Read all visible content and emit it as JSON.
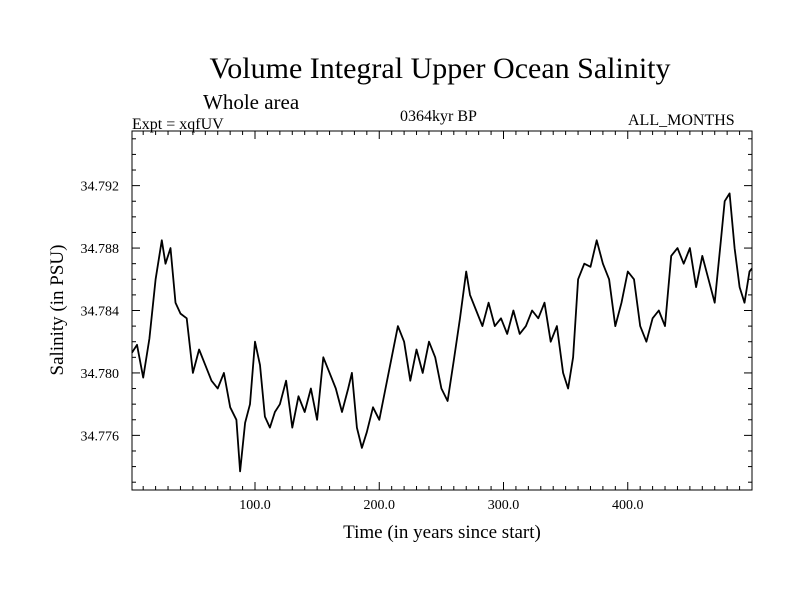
{
  "header": {
    "title": "Volume Integral Upper Ocean Salinity",
    "subtitle": "Whole area",
    "experiment": "Expt = xqfUV",
    "period": "0364kyr BP",
    "months": "ALL_MONTHS"
  },
  "chart_data": {
    "type": "line",
    "title": "Volume Integral Upper Ocean Salinity",
    "xlabel": "Time (in years since start)",
    "ylabel": "Salinity (in PSU)",
    "xlim": [
      1,
      500
    ],
    "ylim": [
      34.7725,
      34.7955
    ],
    "x_ticks": [
      100,
      200,
      300,
      400
    ],
    "x_tick_labels": [
      "100.0",
      "200.0",
      "300.0",
      "400.0"
    ],
    "y_ticks": [
      34.776,
      34.78,
      34.784,
      34.788,
      34.792
    ],
    "y_tick_labels": [
      "34.776",
      "34.780",
      "34.784",
      "34.788",
      "34.792"
    ],
    "grid": false,
    "series": [
      {
        "name": "Salinity",
        "x": [
          1,
          5,
          10,
          15,
          20,
          25,
          28,
          32,
          36,
          40,
          45,
          50,
          55,
          60,
          65,
          70,
          75,
          80,
          85,
          88,
          92,
          96,
          100,
          104,
          108,
          112,
          116,
          120,
          125,
          130,
          135,
          140,
          145,
          150,
          155,
          160,
          165,
          170,
          175,
          178,
          182,
          186,
          190,
          195,
          200,
          205,
          210,
          215,
          220,
          225,
          230,
          235,
          240,
          245,
          250,
          255,
          260,
          265,
          270,
          273,
          278,
          283,
          288,
          293,
          298,
          303,
          308,
          313,
          318,
          323,
          328,
          333,
          338,
          343,
          348,
          352,
          356,
          360,
          365,
          370,
          375,
          380,
          385,
          390,
          395,
          400,
          405,
          410,
          415,
          420,
          425,
          430,
          435,
          440,
          445,
          450,
          455,
          460,
          465,
          470,
          475,
          478,
          482,
          486,
          490,
          494,
          498,
          500
        ],
        "values": [
          34.7813,
          34.7818,
          34.7797,
          34.7822,
          34.786,
          34.7885,
          34.787,
          34.788,
          34.7845,
          34.7838,
          34.7835,
          34.78,
          34.7815,
          34.7805,
          34.7795,
          34.779,
          34.78,
          34.7778,
          34.777,
          34.7737,
          34.7768,
          34.778,
          34.782,
          34.7805,
          34.7772,
          34.7765,
          34.7775,
          34.778,
          34.7795,
          34.7765,
          34.7785,
          34.7775,
          34.779,
          34.777,
          34.781,
          34.78,
          34.779,
          34.7775,
          34.779,
          34.78,
          34.7765,
          34.7752,
          34.7762,
          34.7778,
          34.777,
          34.779,
          34.781,
          34.783,
          34.782,
          34.7795,
          34.7815,
          34.78,
          34.782,
          34.781,
          34.779,
          34.7782,
          34.7808,
          34.7835,
          34.7865,
          34.785,
          34.784,
          34.783,
          34.7845,
          34.783,
          34.7835,
          34.7825,
          34.784,
          34.7825,
          34.783,
          34.784,
          34.7835,
          34.7845,
          34.782,
          34.783,
          34.78,
          34.779,
          34.781,
          34.786,
          34.787,
          34.7868,
          34.7885,
          34.787,
          34.786,
          34.783,
          34.7845,
          34.7865,
          34.786,
          34.783,
          34.782,
          34.7835,
          34.784,
          34.783,
          34.7875,
          34.788,
          34.787,
          34.788,
          34.7855,
          34.7875,
          34.786,
          34.7845,
          34.7885,
          34.791,
          34.7915,
          34.788,
          34.7855,
          34.7845,
          34.7865,
          34.7867
        ]
      }
    ]
  }
}
